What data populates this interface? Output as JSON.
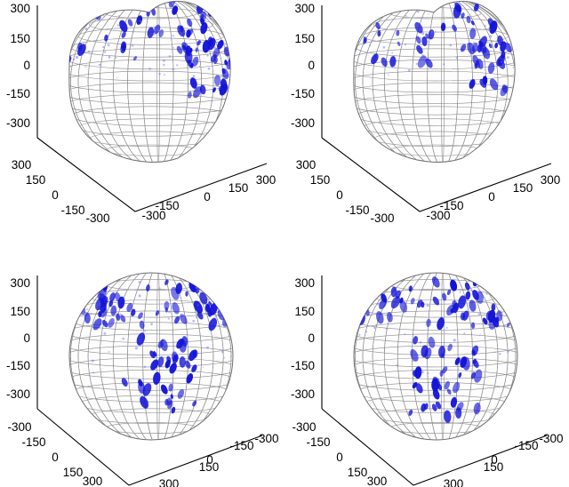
{
  "chart_data": [
    {
      "type": "scatter",
      "subtype": "3d-surface-with-density",
      "title": "",
      "z_ticks": [
        "300",
        "150",
        "0",
        "-150",
        "-300"
      ],
      "x_ticks": [
        "300",
        "150",
        "0",
        "-150",
        "-300"
      ],
      "y_ticks": [
        "-300",
        "-150",
        "0",
        "150",
        "300"
      ],
      "xlim": [
        -300,
        300
      ],
      "ylim": [
        -300,
        300
      ],
      "zlim": [
        -300,
        300
      ],
      "surface": "lobed sphere",
      "density_color": "#1212d8",
      "grid_color": "#8c8c8c",
      "grid": true
    },
    {
      "type": "scatter",
      "subtype": "3d-surface-with-density",
      "title": "",
      "z_ticks": [
        "300",
        "150",
        "0",
        "-150",
        "-300"
      ],
      "x_ticks": [
        "300",
        "150",
        "0",
        "-150",
        "-300"
      ],
      "y_ticks": [
        "-300",
        "-150",
        "0",
        "150",
        "300"
      ],
      "xlim": [
        -300,
        300
      ],
      "ylim": [
        -300,
        300
      ],
      "zlim": [
        -300,
        300
      ],
      "surface": "lobed sphere",
      "density_color": "#1212d8",
      "grid_color": "#8c8c8c",
      "grid": true
    },
    {
      "type": "scatter",
      "subtype": "3d-surface-with-density",
      "title": "",
      "z_ticks": [
        "300",
        "150",
        "0",
        "-150",
        "-300"
      ],
      "x_ticks": [
        "-300",
        "-150",
        "0",
        "150",
        "300"
      ],
      "y_ticks": [
        "300",
        "150",
        "0",
        "-150",
        "-300"
      ],
      "xlim": [
        -300,
        300
      ],
      "ylim": [
        -300,
        300
      ],
      "zlim": [
        -300,
        300
      ],
      "surface": "sphere",
      "density_color": "#1212d8",
      "grid_color": "#8c8c8c",
      "grid": true
    },
    {
      "type": "scatter",
      "subtype": "3d-surface-with-density",
      "title": "",
      "z_ticks": [
        "300",
        "150",
        "0",
        "-150",
        "-300"
      ],
      "x_ticks": [
        "-300",
        "-150",
        "0",
        "150",
        "300"
      ],
      "y_ticks": [
        "300",
        "150",
        "0",
        "-150",
        "-300"
      ],
      "xlim": [
        -300,
        300
      ],
      "ylim": [
        -300,
        300
      ],
      "zlim": [
        -300,
        300
      ],
      "surface": "sphere",
      "density_color": "#1212d8",
      "grid_color": "#8c8c8c",
      "grid": true
    }
  ]
}
